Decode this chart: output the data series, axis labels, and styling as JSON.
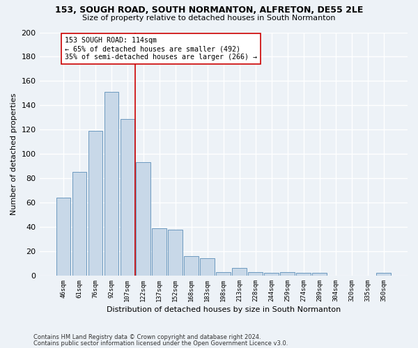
{
  "title1": "153, SOUGH ROAD, SOUTH NORMANTON, ALFRETON, DE55 2LE",
  "title2": "Size of property relative to detached houses in South Normanton",
  "xlabel": "Distribution of detached houses by size in South Normanton",
  "ylabel": "Number of detached properties",
  "footnote1": "Contains HM Land Registry data © Crown copyright and database right 2024.",
  "footnote2": "Contains public sector information licensed under the Open Government Licence v3.0.",
  "bar_color": "#c8d8e8",
  "bar_edge_color": "#5b8db8",
  "categories": [
    "46sqm",
    "61sqm",
    "76sqm",
    "92sqm",
    "107sqm",
    "122sqm",
    "137sqm",
    "152sqm",
    "168sqm",
    "183sqm",
    "198sqm",
    "213sqm",
    "228sqm",
    "244sqm",
    "259sqm",
    "274sqm",
    "289sqm",
    "304sqm",
    "320sqm",
    "335sqm",
    "350sqm"
  ],
  "values": [
    64,
    85,
    119,
    151,
    129,
    93,
    39,
    38,
    16,
    14,
    3,
    6,
    3,
    2,
    3,
    2,
    2,
    0,
    0,
    0,
    2
  ],
  "vline_x": 4.5,
  "vline_color": "#cc0000",
  "annotation_text": "153 SOUGH ROAD: 114sqm\n← 65% of detached houses are smaller (492)\n35% of semi-detached houses are larger (266) →",
  "annotation_box_color": "#ffffff",
  "annotation_box_edge": "#cc0000",
  "ylim": [
    0,
    200
  ],
  "yticks": [
    0,
    20,
    40,
    60,
    80,
    100,
    120,
    140,
    160,
    180,
    200
  ],
  "background_color": "#edf2f7",
  "grid_color": "#ffffff"
}
